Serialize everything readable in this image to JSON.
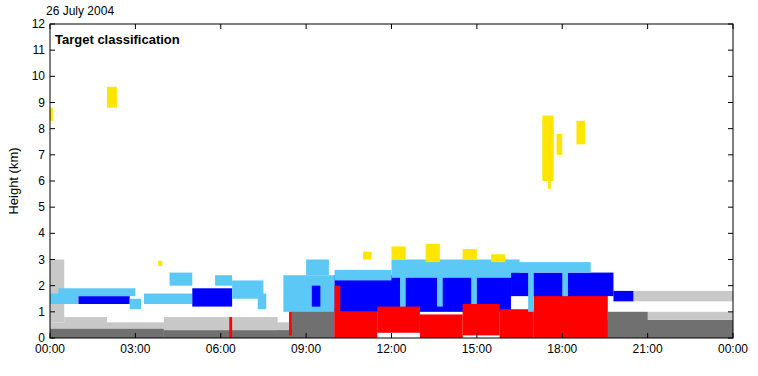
{
  "chart_data": {
    "type": "heatmap",
    "title": "26 July 2004",
    "annotation": "Target classification",
    "y_label": "Height (km)",
    "xlim": [
      0,
      24
    ],
    "ylim": [
      0,
      12
    ],
    "xticks": [
      {
        "value": 0,
        "label": "00:00"
      },
      {
        "value": 3,
        "label": "03:00"
      },
      {
        "value": 6,
        "label": "06:00"
      },
      {
        "value": 9,
        "label": "09:00"
      },
      {
        "value": 12,
        "label": "12:00"
      },
      {
        "value": 15,
        "label": "15:00"
      },
      {
        "value": 18,
        "label": "18:00"
      },
      {
        "value": 21,
        "label": "21:00"
      },
      {
        "value": 24,
        "label": "00:00"
      }
    ],
    "yticks": [
      0,
      1,
      2,
      3,
      4,
      5,
      6,
      7,
      8,
      9,
      10,
      11,
      12
    ],
    "colors": [
      "#ffe600",
      "#5cc8f5",
      "#0000ff",
      "#ff0000",
      "#c8c8c8",
      "#707070"
    ],
    "cells": [
      [
        0,
        9.5,
        0,
        0.6,
        4
      ],
      [
        0,
        4,
        0,
        0.35,
        5
      ],
      [
        4,
        9.5,
        0,
        0.3,
        5
      ],
      [
        0,
        0.5,
        0.6,
        3.0,
        4
      ],
      [
        0.5,
        2,
        0.4,
        0.8,
        4
      ],
      [
        4,
        8,
        0.3,
        0.8,
        4
      ],
      [
        8.5,
        10,
        0,
        1.1,
        5
      ],
      [
        19,
        24,
        0,
        0.7,
        5
      ],
      [
        19.5,
        24,
        0.7,
        1.0,
        4
      ],
      [
        20.5,
        24,
        1.4,
        1.8,
        4
      ],
      [
        0,
        1,
        1.3,
        1.7,
        1
      ],
      [
        1,
        2.8,
        1.3,
        1.6,
        2
      ],
      [
        0.3,
        3,
        1.6,
        1.9,
        1
      ],
      [
        2.8,
        3.2,
        1.1,
        1.5,
        1
      ],
      [
        3.8,
        3.95,
        2.75,
        2.95,
        0
      ],
      [
        3.3,
        5,
        1.3,
        1.7,
        1
      ],
      [
        4.2,
        5,
        2.0,
        2.5,
        1
      ],
      [
        5,
        6.4,
        1.2,
        1.9,
        2
      ],
      [
        6.4,
        7.5,
        1.5,
        2.2,
        1
      ],
      [
        5.8,
        6.4,
        2.0,
        2.4,
        1
      ],
      [
        7.3,
        7.6,
        1.1,
        1.7,
        1
      ],
      [
        8.2,
        10,
        1.0,
        2.4,
        1
      ],
      [
        9,
        9.8,
        2.4,
        3.0,
        1
      ],
      [
        9.2,
        9.5,
        1.2,
        2.0,
        2
      ],
      [
        6.3,
        6.4,
        0,
        0.8,
        3
      ],
      [
        8.4,
        8.5,
        0.1,
        1.0,
        3
      ],
      [
        10,
        16.2,
        1.0,
        2.4,
        2
      ],
      [
        10,
        12,
        2.2,
        2.6,
        1
      ],
      [
        12,
        16.5,
        2.3,
        3.0,
        1
      ],
      [
        12.3,
        12.5,
        1.0,
        2.8,
        1
      ],
      [
        13.6,
        13.8,
        1.2,
        2.8,
        1
      ],
      [
        14.8,
        15.0,
        1.0,
        2.9,
        1
      ],
      [
        10,
        11.5,
        0,
        1.0,
        3
      ],
      [
        11.5,
        13,
        0.2,
        1.2,
        3
      ],
      [
        13,
        14.5,
        0,
        0.9,
        3
      ],
      [
        14.5,
        15.8,
        0.1,
        1.3,
        3
      ],
      [
        15.8,
        17,
        0,
        1.1,
        3
      ],
      [
        17,
        19.6,
        0,
        1.7,
        3
      ],
      [
        10,
        10.2,
        0,
        2.0,
        3
      ],
      [
        16.2,
        19.8,
        1.6,
        2.5,
        2
      ],
      [
        16,
        19,
        2.5,
        2.9,
        1
      ],
      [
        19.8,
        20.5,
        1.4,
        1.8,
        2
      ],
      [
        16.8,
        17,
        1.0,
        2.7,
        1
      ],
      [
        18,
        18.2,
        1.6,
        2.8,
        1
      ],
      [
        19.6,
        21,
        0,
        1.0,
        5
      ],
      [
        11,
        11.3,
        3.0,
        3.3,
        0
      ],
      [
        12,
        12.5,
        3.0,
        3.5,
        0
      ],
      [
        13.2,
        13.7,
        2.9,
        3.6,
        0
      ],
      [
        14.5,
        15,
        3.0,
        3.4,
        0
      ],
      [
        15.5,
        16,
        2.9,
        3.2,
        0
      ],
      [
        2.0,
        2.35,
        8.8,
        9.6,
        0
      ],
      [
        0,
        0.1,
        8.3,
        8.8,
        0
      ],
      [
        17.3,
        17.7,
        6.0,
        8.5,
        0
      ],
      [
        17.5,
        17.6,
        5.7,
        6.0,
        0
      ],
      [
        17.8,
        18,
        7.0,
        7.8,
        0
      ],
      [
        18.5,
        18.8,
        7.4,
        8.3,
        0
      ]
    ]
  }
}
